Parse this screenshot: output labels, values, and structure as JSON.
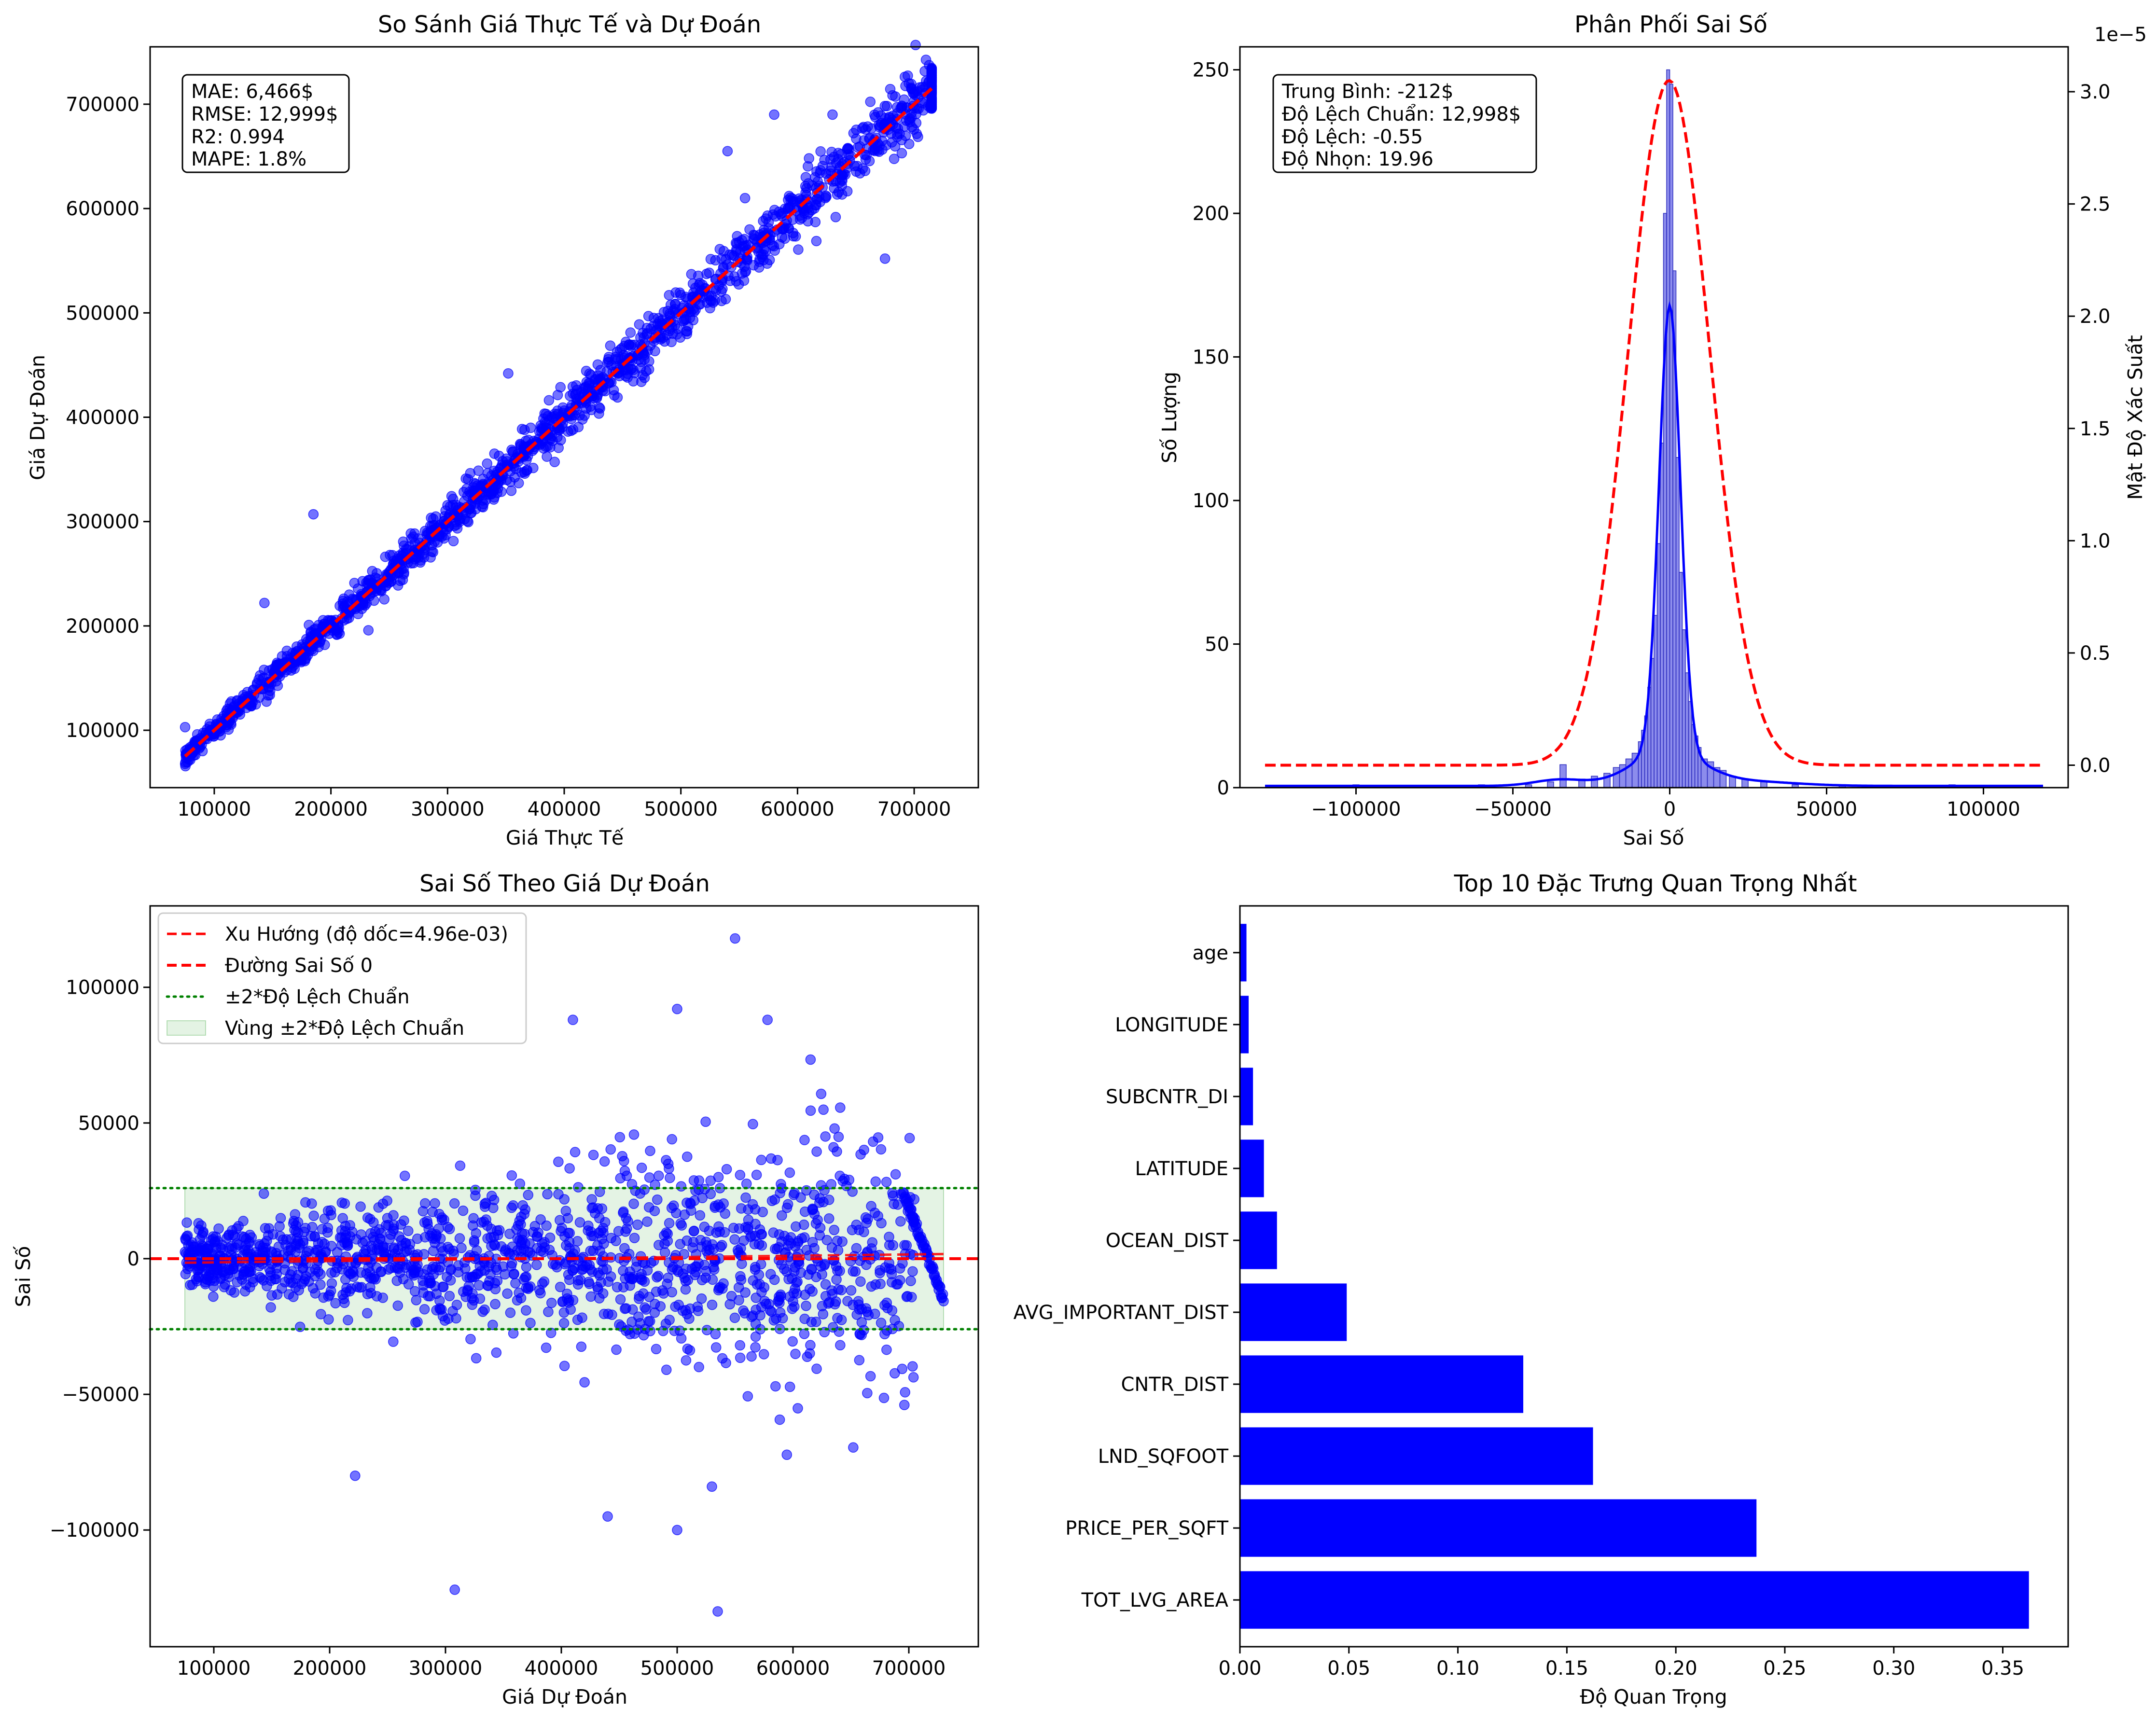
{
  "chart_data": [
    {
      "type": "scatter",
      "title": "So Sánh Giá Thực Tế và Dự Đoán",
      "xlabel": "Giá Thực Tế",
      "ylabel": "Giá Dự Đoán",
      "xlim": [
        45000,
        755000
      ],
      "ylim": [
        45000,
        755000
      ],
      "xticks": [
        100000,
        200000,
        300000,
        400000,
        500000,
        600000,
        700000
      ],
      "yticks": [
        100000,
        200000,
        300000,
        400000,
        500000,
        600000,
        700000
      ],
      "xtick_labels": [
        "100000",
        "200000",
        "300000",
        "400000",
        "500000",
        "600000",
        "700000"
      ],
      "ytick_labels": [
        "100000",
        "200000",
        "300000",
        "400000",
        "500000",
        "600000",
        "700000"
      ],
      "stats_text": [
        "MAE: 6,466$",
        "RMSE: 12,999$",
        "R2: 0.994",
        "MAPE: 1.8%"
      ],
      "reference_line": {
        "from": [
          75000,
          75000
        ],
        "to": [
          715000,
          715000
        ],
        "style": "red dashed"
      },
      "point_color": "#0000ff",
      "outliers": [
        [
          75000,
          103000
        ],
        [
          185000,
          307000
        ],
        [
          143000,
          222000
        ],
        [
          352000,
          442000
        ],
        [
          675000,
          552000
        ],
        [
          616000,
          620000
        ],
        [
          630000,
          690000
        ],
        [
          540000,
          655000
        ],
        [
          555000,
          610000
        ],
        [
          580000,
          690000
        ]
      ]
    },
    {
      "type": "histogram",
      "title": "Phân Phối Sai Số",
      "xlabel": "Sai Số",
      "ylabel": "Số Lượng",
      "ylabel_right": "Mật Độ Xác Suất",
      "right_axis_offset": "1e−5",
      "xlim": [
        -137000,
        127000
      ],
      "ylim": [
        0,
        258
      ],
      "ylim_right": [
        -0.1,
        3.2
      ],
      "xticks": [
        -100000,
        -50000,
        0,
        50000,
        100000
      ],
      "xtick_labels": [
        "−100000",
        "−50000",
        "0",
        "50000",
        "100000"
      ],
      "yticks": [
        0,
        50,
        100,
        150,
        200,
        250
      ],
      "ytick_labels": [
        "0",
        "50",
        "100",
        "150",
        "200",
        "250"
      ],
      "yticks_right": [
        0.0,
        0.5,
        1.0,
        1.5,
        2.0,
        2.5,
        3.0
      ],
      "ytick_labels_right": [
        "0.0",
        "0.5",
        "1.0",
        "1.5",
        "2.0",
        "2.5",
        "3.0"
      ],
      "stats_text": [
        "Trung Bình: -212$",
        "Độ Lệch Chuẩn: 12,998$",
        "Độ Lệch: -0.55",
        "Độ Nhọn: 19.96"
      ],
      "mean": -212,
      "std": 12998,
      "kde_peak_count": 155,
      "normal_peak_density": 3.05,
      "hist_bins": [
        {
          "x": -500,
          "count": 250
        },
        {
          "x": 500,
          "count": 245
        },
        {
          "x": -1500,
          "count": 200
        },
        {
          "x": 1500,
          "count": 180
        },
        {
          "x": -2500,
          "count": 120
        },
        {
          "x": 2500,
          "count": 115
        },
        {
          "x": -3500,
          "count": 85
        },
        {
          "x": 3500,
          "count": 75
        },
        {
          "x": -4500,
          "count": 60
        },
        {
          "x": 4500,
          "count": 55
        },
        {
          "x": -5500,
          "count": 45
        },
        {
          "x": 5500,
          "count": 40
        },
        {
          "x": -6500,
          "count": 35
        },
        {
          "x": 6500,
          "count": 30
        },
        {
          "x": -7500,
          "count": 25
        },
        {
          "x": 7500,
          "count": 22
        },
        {
          "x": -8500,
          "count": 20
        },
        {
          "x": 8500,
          "count": 18
        },
        {
          "x": -9500,
          "count": 16
        },
        {
          "x": 9500,
          "count": 14
        },
        {
          "x": -11000,
          "count": 12
        },
        {
          "x": 11000,
          "count": 10
        },
        {
          "x": -13000,
          "count": 10
        },
        {
          "x": 13000,
          "count": 9
        },
        {
          "x": -15000,
          "count": 8
        },
        {
          "x": 15000,
          "count": 7
        },
        {
          "x": -17000,
          "count": 7
        },
        {
          "x": 17000,
          "count": 6
        },
        {
          "x": -20000,
          "count": 5
        },
        {
          "x": 20000,
          "count": 4
        },
        {
          "x": -24000,
          "count": 4
        },
        {
          "x": 24000,
          "count": 3
        },
        {
          "x": -28000,
          "count": 3
        },
        {
          "x": -34000,
          "count": 8
        },
        {
          "x": -38000,
          "count": 2
        },
        {
          "x": 30000,
          "count": 2
        },
        {
          "x": -45000,
          "count": 1
        },
        {
          "x": 40000,
          "count": 1
        },
        {
          "x": -60000,
          "count": 1
        },
        {
          "x": 55000,
          "count": 1
        },
        {
          "x": -100000,
          "count": 1
        },
        {
          "x": 90000,
          "count": 1
        }
      ]
    },
    {
      "type": "scatter",
      "title": "Sai Số Theo Giá Dự Đoán",
      "xlabel": "Giá Dự Đoán",
      "ylabel": "Sai Số",
      "xlim": [
        45000,
        760000
      ],
      "ylim": [
        -143000,
        130000
      ],
      "xticks": [
        100000,
        200000,
        300000,
        400000,
        500000,
        600000,
        700000
      ],
      "xtick_labels": [
        "100000",
        "200000",
        "300000",
        "400000",
        "500000",
        "600000",
        "700000"
      ],
      "yticks": [
        -100000,
        -50000,
        0,
        50000,
        100000
      ],
      "ytick_labels": [
        "−100000",
        "−50000",
        "0",
        "50000",
        "100000"
      ],
      "std_band": [
        -26000,
        26000
      ],
      "band_x_range": [
        75000,
        730000
      ],
      "legend": [
        "Xu Hướng (độ dốc=4.96e-03)",
        "Đường Sai Số 0",
        "±2*Độ Lệch Chuẩn",
        "Vùng ±2*Độ Lệch Chuẩn"
      ],
      "legend_position": "upper-left",
      "point_color": "#0000ff",
      "outliers": [
        [
          550000,
          118000
        ],
        [
          410000,
          88000
        ],
        [
          500000,
          92000
        ],
        [
          578000,
          88000
        ],
        [
          308000,
          -122000
        ],
        [
          535000,
          -130000
        ],
        [
          222000,
          -80000
        ],
        [
          500000,
          -100000
        ],
        [
          440000,
          -95000
        ],
        [
          530000,
          -84000
        ]
      ]
    },
    {
      "type": "bar",
      "orientation": "horizontal",
      "title": "Top 10 Đặc Trưng Quan Trọng Nhất",
      "xlabel": "Độ Quan Trọng",
      "ylabel": "",
      "xlim": [
        0,
        0.38
      ],
      "xticks": [
        0.0,
        0.05,
        0.1,
        0.15,
        0.2,
        0.25,
        0.3,
        0.35
      ],
      "xtick_labels": [
        "0.00",
        "0.05",
        "0.10",
        "0.15",
        "0.20",
        "0.25",
        "0.30",
        "0.35"
      ],
      "categories": [
        "TOT_LVG_AREA",
        "PRICE_PER_SQFT",
        "LND_SQFOOT",
        "CNTR_DIST",
        "AVG_IMPORTANT_DIST",
        "OCEAN_DIST",
        "LATITUDE",
        "SUBCNTR_DI",
        "LONGITUDE",
        "age"
      ],
      "values": [
        0.362,
        0.237,
        0.162,
        0.13,
        0.049,
        0.017,
        0.011,
        0.006,
        0.004,
        0.003
      ],
      "bar_color": "#0000ff"
    }
  ]
}
